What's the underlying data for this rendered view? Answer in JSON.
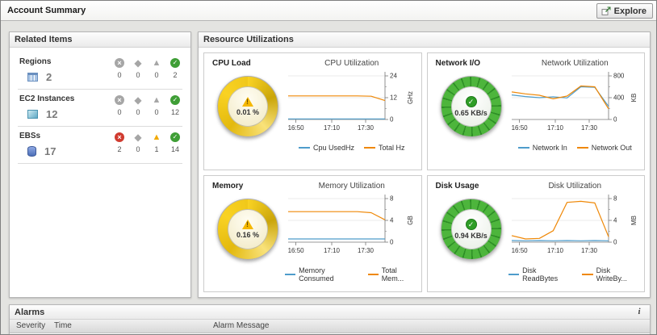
{
  "header": {
    "title": "Account Summary",
    "explore_label": "Explore"
  },
  "related": {
    "title": "Related Items",
    "rows": [
      {
        "label": "Regions",
        "count": "2",
        "statuses": [
          {
            "type": "fatal",
            "count": "0",
            "state": "gray"
          },
          {
            "type": "critical",
            "count": "0",
            "state": "gray"
          },
          {
            "type": "warning",
            "count": "0",
            "state": "gray"
          },
          {
            "type": "normal",
            "count": "2",
            "state": "green"
          }
        ]
      },
      {
        "label": "EC2 Instances",
        "count": "12",
        "statuses": [
          {
            "type": "fatal",
            "count": "0",
            "state": "gray"
          },
          {
            "type": "critical",
            "count": "0",
            "state": "gray"
          },
          {
            "type": "warning",
            "count": "0",
            "state": "gray"
          },
          {
            "type": "normal",
            "count": "12",
            "state": "green"
          }
        ]
      },
      {
        "label": "EBSs",
        "count": "17",
        "statuses": [
          {
            "type": "fatal",
            "count": "2",
            "state": "red"
          },
          {
            "type": "critical",
            "count": "0",
            "state": "gray"
          },
          {
            "type": "warning",
            "count": "1",
            "state": "yellow"
          },
          {
            "type": "normal",
            "count": "14",
            "state": "green"
          }
        ]
      }
    ]
  },
  "resources": {
    "title": "Resource Utilizations",
    "panels": [
      {
        "label": "CPU Load",
        "value": "0.01 %",
        "state": "warning",
        "chart": {
          "type": "line",
          "title": "CPU Utilization",
          "unit": "GHz",
          "ylim": [
            0,
            24
          ],
          "y_ticks": [
            0,
            12,
            24
          ],
          "x_labels": [
            "16:50",
            "17:10",
            "17:30"
          ],
          "series": [
            {
              "name": "Cpu UsedHz",
              "color": "#4e9ccb",
              "values": [
                0.3,
                0.3,
                0.3,
                0.3,
                0.3,
                0.3,
                0.3,
                0.3
              ]
            },
            {
              "name": "Total Hz",
              "color": "#ef8807",
              "values": [
                13,
                13,
                13,
                13,
                13,
                13,
                12.8,
                10.4
              ]
            }
          ]
        }
      },
      {
        "label": "Network I/O",
        "value": "0.65 KB/s",
        "state": "normal",
        "chart": {
          "type": "line",
          "title": "Network Utilization",
          "unit": "KB",
          "ylim": [
            0,
            800
          ],
          "y_ticks": [
            0,
            400,
            800
          ],
          "x_labels": [
            "16:50",
            "17:10",
            "17:30"
          ],
          "series": [
            {
              "name": "Network In",
              "color": "#4e9ccb",
              "values": [
                450,
                420,
                400,
                415,
                395,
                600,
                590,
                240
              ]
            },
            {
              "name": "Network Out",
              "color": "#ef8807",
              "values": [
                505,
                470,
                445,
                380,
                430,
                615,
                600,
                195
              ]
            }
          ]
        }
      },
      {
        "label": "Memory",
        "value": "0.16 %",
        "state": "warning",
        "chart": {
          "type": "line",
          "title": "Memory Utilization",
          "unit": "GB",
          "ylim": [
            0,
            8
          ],
          "y_ticks": [
            0,
            4,
            8
          ],
          "x_labels": [
            "16:50",
            "17:10",
            "17:30"
          ],
          "series": [
            {
              "name": "Memory Consumed",
              "color": "#4e9ccb",
              "values": [
                0.6,
                0.6,
                0.6,
                0.6,
                0.6,
                0.6,
                0.6,
                0.6
              ]
            },
            {
              "name": "Total Mem...",
              "color": "#ef8807",
              "values": [
                5.6,
                5.6,
                5.6,
                5.6,
                5.6,
                5.6,
                5.4,
                4.1
              ]
            }
          ]
        }
      },
      {
        "label": "Disk Usage",
        "value": "0.94 KB/s",
        "state": "normal",
        "chart": {
          "type": "line",
          "title": "Disk Utilization",
          "unit": "MB",
          "ylim": [
            0,
            8
          ],
          "y_ticks": [
            0,
            4,
            8
          ],
          "x_labels": [
            "16:50",
            "17:10",
            "17:30"
          ],
          "series": [
            {
              "name": "Disk ReadBytes",
              "color": "#4e9ccb",
              "values": [
                0.3,
                0.25,
                0.3,
                0.25,
                0.3,
                0.25,
                0.3,
                0.25
              ]
            },
            {
              "name": "Disk WriteBy...",
              "color": "#ef8807",
              "values": [
                1.2,
                0.6,
                0.7,
                2.1,
                7.3,
                7.5,
                7.2,
                1.0
              ]
            }
          ]
        }
      }
    ]
  },
  "alarms": {
    "title": "Alarms",
    "info_icon": "i",
    "columns": [
      "Severity",
      "Time",
      "Alarm Message"
    ]
  }
}
